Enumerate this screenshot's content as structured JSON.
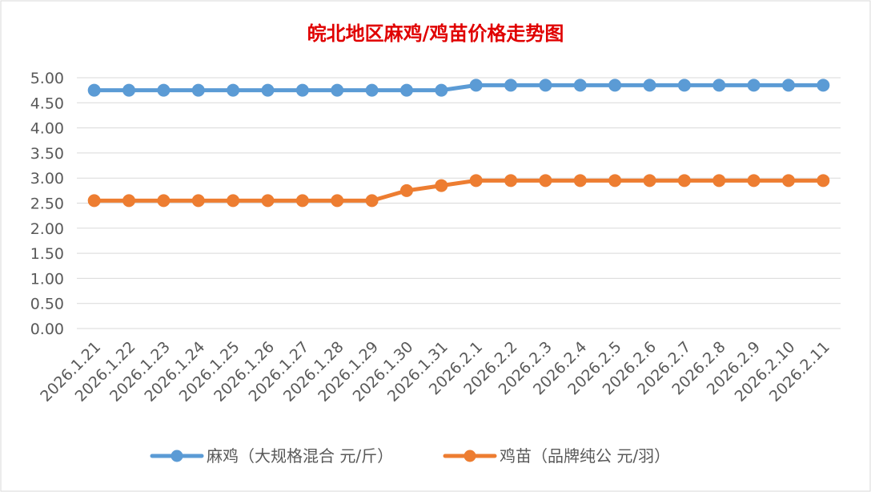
{
  "colors": {
    "title": "#e00000",
    "series_mj": "#5b9bd5",
    "series_jm": "#ed7d31",
    "grid": "#d9d9d9",
    "axis_text": "#595959",
    "border": "#d9d9d9"
  },
  "chart_data": {
    "type": "line",
    "title": "皖北地区麻鸡/鸡苗价格走势图",
    "xlabel": "",
    "ylabel": "",
    "ylim": [
      0,
      5
    ],
    "y_ticks": [
      "0.00",
      "0.50",
      "1.00",
      "1.50",
      "2.00",
      "2.50",
      "3.00",
      "3.50",
      "4.00",
      "4.50",
      "5.00"
    ],
    "grid": true,
    "legend_position": "bottom",
    "categories": [
      "2026.1.21",
      "2026.1.22",
      "2026.1.23",
      "2026.1.24",
      "2026.1.25",
      "2026.1.26",
      "2026.1.27",
      "2026.1.28",
      "2026.1.29",
      "2026.1.30",
      "2026.1.31",
      "2026.2.1",
      "2026.2.2",
      "2026.2.3",
      "2026.2.4",
      "2026.2.5",
      "2026.2.6",
      "2026.2.7",
      "2026.2.8",
      "2026.2.9",
      "2026.2.10",
      "2026.2.11"
    ],
    "series": [
      {
        "name": "麻鸡（大规格混合 元/斤）",
        "color_key": "series_mj",
        "values": [
          4.75,
          4.75,
          4.75,
          4.75,
          4.75,
          4.75,
          4.75,
          4.75,
          4.75,
          4.75,
          4.75,
          4.85,
          4.85,
          4.85,
          4.85,
          4.85,
          4.85,
          4.85,
          4.85,
          4.85,
          4.85,
          4.85
        ]
      },
      {
        "name": "鸡苗（品牌纯公 元/羽）",
        "color_key": "series_jm",
        "values": [
          2.55,
          2.55,
          2.55,
          2.55,
          2.55,
          2.55,
          2.55,
          2.55,
          2.55,
          2.75,
          2.85,
          2.95,
          2.95,
          2.95,
          2.95,
          2.95,
          2.95,
          2.95,
          2.95,
          2.95,
          2.95,
          2.95
        ]
      }
    ]
  }
}
